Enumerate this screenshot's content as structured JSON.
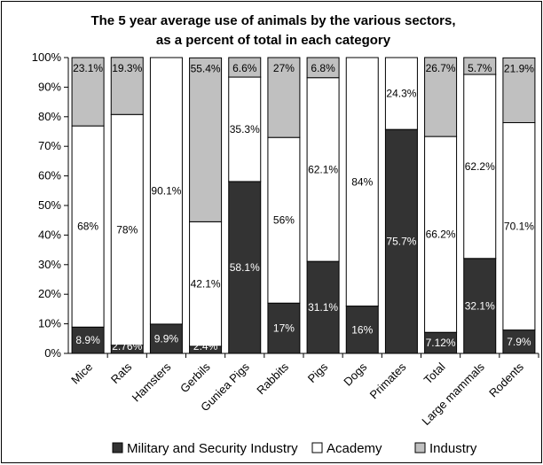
{
  "chart_data": {
    "type": "bar",
    "stacked": true,
    "title": "The 5 year average use of animals by the various sectors,",
    "subtitle": "as a percent of total in each category",
    "categories": [
      "Mice",
      "Rats",
      "Hamsters",
      "Gerbils",
      "Guniea Pigs",
      "Rabbits",
      "Pigs",
      "Dogs",
      "Primates",
      "Total",
      "Large mammals",
      "Rodents"
    ],
    "ylim": [
      0,
      100
    ],
    "yticks": [
      "0%",
      "10%",
      "20%",
      "30%",
      "40%",
      "50%",
      "60%",
      "70%",
      "80%",
      "90%",
      "100%"
    ],
    "grid": false,
    "legend_position": "bottom",
    "series": [
      {
        "name": "Military and Security Industry",
        "color": "#333333",
        "label_color": "#ffffff",
        "values": [
          8.9,
          2.76,
          9.9,
          2.4,
          58.1,
          17,
          31.1,
          16,
          75.7,
          7.12,
          32.1,
          7.9
        ],
        "labels": [
          "8.9%",
          "2.76%",
          "9.9%",
          "2.4%",
          "58.1%",
          "17%",
          "31.1%",
          "16%",
          "75.7%",
          "7.12%",
          "32.1%",
          "7.9%"
        ]
      },
      {
        "name": "Academy",
        "color": "#ffffff",
        "label_color": "#000000",
        "values": [
          68,
          78,
          90.1,
          42.1,
          35.3,
          56,
          62.1,
          84,
          24.3,
          66.2,
          62.2,
          70.1
        ],
        "labels": [
          "68%",
          "78%",
          "90.1%",
          "42.1%",
          "35.3%",
          "56%",
          "62.1%",
          "84%",
          "24.3%",
          "66.2%",
          "62.2%",
          "70.1%"
        ]
      },
      {
        "name": "Industry",
        "color": "#c0c0c0",
        "label_color": "#000000",
        "values": [
          23.1,
          19.3,
          0,
          55.4,
          6.6,
          27,
          6.8,
          0,
          0,
          26.7,
          5.7,
          21.9
        ],
        "labels": [
          "23.1%",
          "19.3%",
          "",
          "55.4%",
          "6.6%",
          "27%",
          "6.8%",
          "",
          "",
          "26.7%",
          "5.7%",
          "21.9%"
        ]
      }
    ]
  }
}
